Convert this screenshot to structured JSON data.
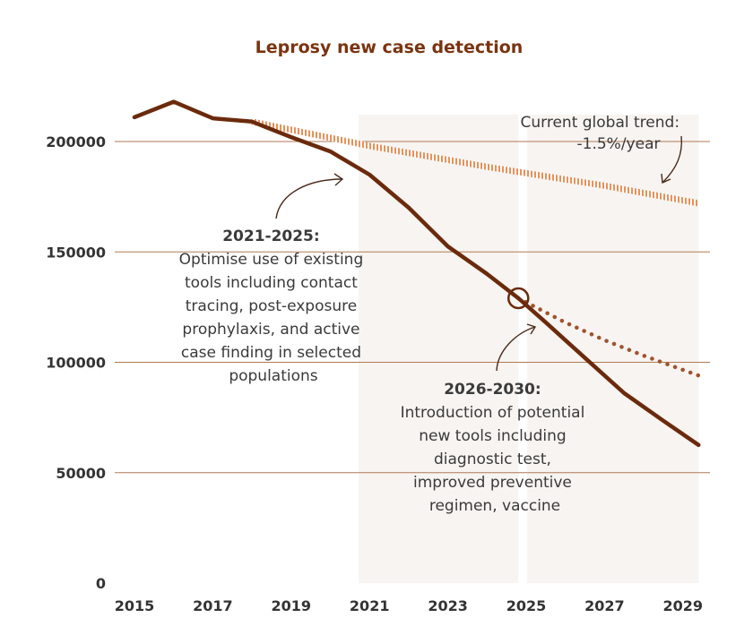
{
  "chart_data": {
    "type": "line",
    "title": "Leprosy new case detection",
    "xlabel": "",
    "ylabel": "",
    "x_ticks": [
      "2015",
      "2017",
      "2019",
      "2021",
      "2023",
      "2025",
      "2027",
      "2029"
    ],
    "y_ticks": [
      "0",
      "50000",
      "100000",
      "150000",
      "200000"
    ],
    "xlim": [
      2014.8,
      2029.6
    ],
    "ylim": [
      0,
      200000
    ],
    "grid": "horizontal",
    "shaded_periods": [
      [
        2021,
        2024.8
      ],
      [
        2025.3,
        2029.4
      ]
    ],
    "series": [
      {
        "style": "solid",
        "color": "#6b2a0c",
        "x": [
          2015,
          2016,
          2017,
          2018,
          2019,
          2020,
          2021,
          2022,
          2023,
          2024,
          2024.8,
          2025.5,
          2026.5,
          2027.5,
          2028.5,
          2029.4
        ],
        "y": [
          211000,
          218000,
          210500,
          209000,
          202000,
          195500,
          185000,
          170000,
          152500,
          140000,
          129000,
          118000,
          102000,
          86000,
          73500,
          62500
        ]
      },
      {
        "style": "hatched",
        "color": "#e8915a",
        "x": [
          2018,
          2021,
          2024,
          2027,
          2029.4
        ],
        "y": [
          209000,
          198000,
          188500,
          180000,
          172000
        ]
      },
      {
        "style": "dotted",
        "color": "#a0522d",
        "x": [
          2024.8,
          2026,
          2027,
          2028,
          2029.4
        ],
        "y": [
          129000,
          118000,
          110000,
          103000,
          94000
        ]
      }
    ],
    "marker": {
      "x": 2024.8,
      "y": 129000
    },
    "annotations": [
      {
        "heading": "",
        "lines": [
          "Current global trend:",
          "-1.5%/year"
        ]
      },
      {
        "heading": "2021-2025:",
        "lines": [
          "Optimise use of existing",
          "tools including contact",
          "tracing, post-exposure",
          "prophylaxis, and active",
          "case finding in selected",
          "populations"
        ]
      },
      {
        "heading": "2026-2030:",
        "lines": [
          "Introduction of potential",
          "new tools including",
          "diagnostic test,",
          "improved preventive",
          "regimen, vaccine"
        ]
      }
    ]
  }
}
